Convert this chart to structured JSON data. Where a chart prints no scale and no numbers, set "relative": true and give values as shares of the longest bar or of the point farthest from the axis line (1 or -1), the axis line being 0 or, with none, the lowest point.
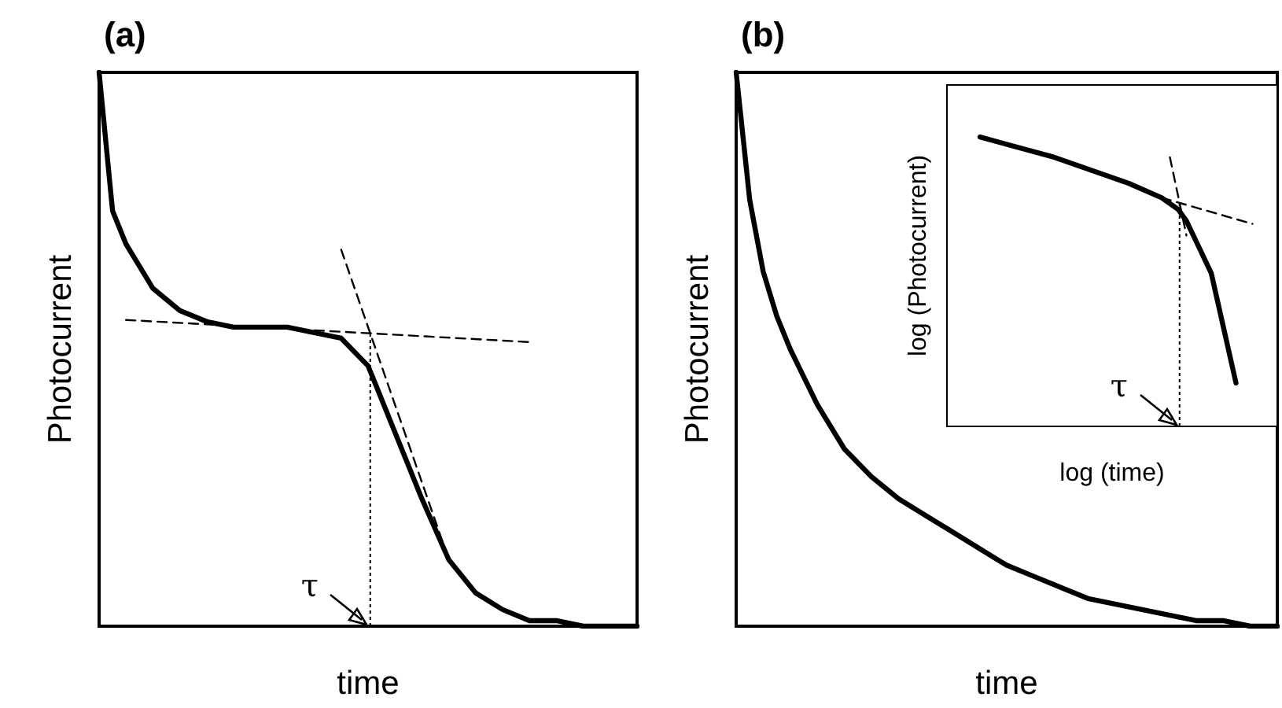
{
  "chart_data": [
    {
      "type": "line",
      "title": "(a)",
      "xlabel": "time",
      "ylabel": "Photocurrent",
      "relative": true,
      "categories": [
        null,
        null,
        null,
        null,
        null,
        null,
        null,
        null,
        null,
        null,
        null,
        null,
        null,
        null,
        null,
        null,
        null,
        null,
        null,
        null,
        null,
        null,
        null,
        null,
        null,
        null,
        null,
        null,
        null,
        null,
        null,
        null,
        null,
        null,
        null,
        null,
        null,
        null,
        null,
        null,
        null
      ],
      "ref_lines": [
        {
          "axis": "x",
          "label": "τ",
          "line_style": "dotted"
        }
      ],
      "series": [
        {
          "color": "#000000",
          "values": [
            1,
            0.75,
            0.69,
            0.65,
            0.61,
            null,
            0.57,
            null,
            0.55,
            null,
            0.54,
            null,
            0.54,
            null,
            0.54,
            null,
            0.53,
            null,
            0.52,
            null,
            0.47,
            null,
            0.35,
            null,
            0.23,
            null,
            0.12,
            null,
            0.06,
            null,
            0.03,
            null,
            0.01,
            null,
            0.01,
            null,
            0,
            null,
            0,
            null,
            0
          ]
        },
        {
          "color": "#000000",
          "line_style": "dashed",
          "values": [
            null,
            null,
            0.553,
            null,
            null,
            null,
            null,
            null,
            null,
            null,
            null,
            null,
            null,
            null,
            null,
            null,
            null,
            null,
            null,
            null,
            null,
            null,
            null,
            null,
            null,
            null,
            null,
            null,
            null,
            null,
            null,
            null,
            0.513,
            null,
            null,
            null,
            null,
            null,
            null,
            null,
            null
          ]
        },
        {
          "color": "#000000",
          "line_style": "dashed",
          "values": [
            null,
            null,
            null,
            null,
            null,
            null,
            null,
            null,
            null,
            null,
            null,
            null,
            null,
            null,
            null,
            null,
            null,
            null,
            0.68,
            null,
            null,
            null,
            null,
            null,
            null,
            null,
            0.12,
            null,
            null,
            null,
            null,
            null,
            null,
            null,
            null,
            null,
            null,
            null,
            null,
            null,
            null
          ]
        }
      ]
    },
    {
      "type": "line",
      "title": "(b)",
      "xlabel": "time",
      "ylabel": "Photocurrent",
      "relative": true,
      "categories": [
        null,
        null,
        null,
        null,
        null,
        null,
        null,
        null,
        null,
        null,
        null,
        null,
        null,
        null,
        null,
        null,
        null,
        null,
        null,
        null,
        null,
        null,
        null,
        null,
        null,
        null,
        null,
        null,
        null,
        null,
        null,
        null,
        null,
        null,
        null,
        null,
        null,
        null,
        null,
        null,
        null
      ],
      "series": [
        {
          "color": "#000000",
          "values": [
            1,
            0.77,
            0.64,
            0.56,
            0.5,
            null,
            0.4,
            null,
            0.32,
            null,
            0.27,
            null,
            0.23,
            null,
            0.2,
            null,
            0.17,
            null,
            0.14,
            null,
            0.11,
            null,
            0.09,
            null,
            0.07,
            null,
            0.05,
            null,
            0.04,
            null,
            0.03,
            null,
            0.02,
            null,
            0.01,
            null,
            0.01,
            null,
            0,
            null,
            0
          ]
        }
      ]
    },
    {
      "type": "line",
      "xlabel": "log (time)",
      "ylabel": "log (Photocurrent)",
      "relative": true,
      "categories": [
        null,
        null,
        null,
        null,
        null,
        null,
        null,
        null,
        null,
        null,
        null,
        null,
        null,
        null,
        null,
        null,
        null,
        null,
        null,
        null,
        null,
        null,
        null,
        null,
        null,
        null,
        null,
        null,
        null,
        null,
        null,
        null,
        null,
        null,
        null,
        null,
        null,
        null,
        null,
        null,
        null
      ],
      "ref_lines": [
        {
          "axis": "x",
          "label": "τ",
          "line_style": "dotted"
        }
      ],
      "series": [
        {
          "color": "#000000",
          "values": [
            null,
            null,
            null,
            null,
            1,
            null,
            null,
            null,
            null,
            null,
            null,
            null,
            null,
            0.93,
            null,
            null,
            null,
            null,
            null,
            null,
            null,
            null,
            0.84,
            null,
            null,
            null,
            0.79,
            null,
            0.75,
            0.71,
            null,
            null,
            0.53,
            null,
            null,
            0.15,
            null,
            null,
            null,
            null,
            null
          ]
        },
        {
          "color": "#000000",
          "line_style": "dashed",
          "values": [
            null,
            null,
            null,
            null,
            null,
            null,
            null,
            null,
            null,
            null,
            null,
            null,
            null,
            null,
            null,
            null,
            null,
            null,
            null,
            null,
            null,
            null,
            null,
            null,
            null,
            null,
            null,
            0.93,
            null,
            0.66,
            null,
            null,
            null,
            null,
            null,
            null,
            null,
            null,
            null,
            null,
            null
          ]
        },
        {
          "color": "#000000",
          "line_style": "dashed",
          "values": [
            null,
            null,
            null,
            null,
            null,
            null,
            null,
            null,
            null,
            null,
            null,
            null,
            null,
            null,
            null,
            null,
            null,
            null,
            null,
            null,
            null,
            null,
            null,
            null,
            null,
            null,
            0.79,
            null,
            null,
            null,
            null,
            null,
            null,
            null,
            null,
            null,
            null,
            0.7,
            null,
            null,
            null
          ]
        }
      ]
    }
  ]
}
